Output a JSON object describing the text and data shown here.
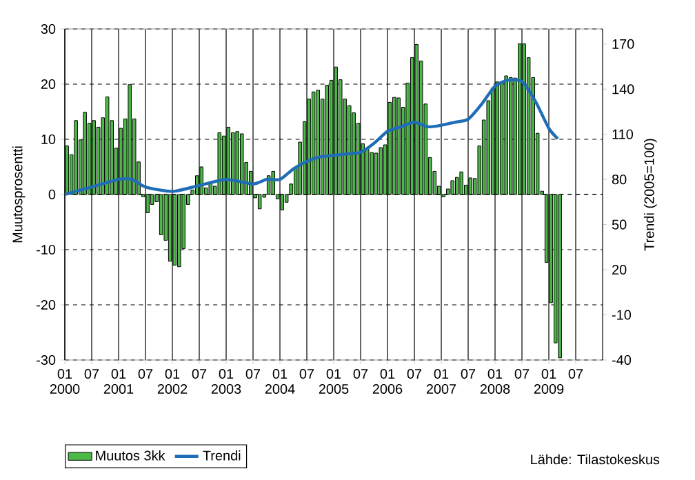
{
  "chart_data": {
    "type": "bar",
    "ylabel": "Muutosprosentti",
    "y2label": "Trendi (2005=100)",
    "annotations": [
      "Lähde: Tilastokeskus"
    ],
    "x": [
      "2000-01-16",
      "2000-02-15",
      "2000-03-16",
      "2000-04-16",
      "2000-05-16",
      "2000-06-16",
      "2000-07-16",
      "2000-08-16",
      "2000-09-16",
      "2000-10-16",
      "2000-11-16",
      "2000-12-16",
      "2001-01-16",
      "2001-02-15",
      "2001-03-16",
      "2001-04-16",
      "2001-05-16",
      "2001-06-16",
      "2001-07-16",
      "2001-08-16",
      "2001-09-16",
      "2001-10-16",
      "2001-11-16",
      "2001-12-16",
      "2002-01-16",
      "2002-02-15",
      "2002-03-16",
      "2002-04-16",
      "2002-05-16",
      "2002-06-16",
      "2002-07-16",
      "2002-08-16",
      "2002-09-16",
      "2002-10-16",
      "2002-11-16",
      "2002-12-16",
      "2003-01-16",
      "2003-02-15",
      "2003-03-16",
      "2003-04-16",
      "2003-05-16",
      "2003-06-16",
      "2003-07-16",
      "2003-08-16",
      "2003-09-16",
      "2003-10-16",
      "2003-11-16",
      "2003-12-16",
      "2004-01-16",
      "2004-02-15",
      "2004-03-16",
      "2004-04-16",
      "2004-05-16",
      "2004-06-16",
      "2004-07-16",
      "2004-08-16",
      "2004-09-16",
      "2004-10-16",
      "2004-11-16",
      "2004-12-16",
      "2005-01-16",
      "2005-02-15",
      "2005-03-16",
      "2005-04-16",
      "2005-05-16",
      "2005-06-16",
      "2005-07-16",
      "2005-08-16",
      "2005-09-16",
      "2005-10-16",
      "2005-11-16",
      "2005-12-16",
      "2006-01-16",
      "2006-02-15",
      "2006-03-16",
      "2006-04-16",
      "2006-05-16",
      "2006-06-16",
      "2006-07-16",
      "2006-08-16",
      "2006-09-16",
      "2006-10-16",
      "2006-11-16",
      "2006-12-16",
      "2007-01-16",
      "2007-02-15",
      "2007-03-16",
      "2007-04-16",
      "2007-05-16",
      "2007-06-16",
      "2007-07-16",
      "2007-08-16",
      "2007-09-16",
      "2007-10-16",
      "2007-11-16",
      "2007-12-16",
      "2008-01-16",
      "2008-02-15",
      "2008-03-16",
      "2008-04-16",
      "2008-05-16",
      "2008-06-16",
      "2008-07-16",
      "2008-08-16",
      "2008-09-16",
      "2008-10-16",
      "2008-11-16",
      "2008-12-16",
      "2009-01-16",
      "2009-02-15",
      "2009-03-16"
    ],
    "xlim": [
      "2000-01",
      "2010-01"
    ],
    "xticks": [
      {
        "value": "2000-01",
        "label": "01 2000"
      },
      {
        "value": "2000-07",
        "label": "07"
      },
      {
        "value": "2001-01",
        "label": "01 2001"
      },
      {
        "value": "2001-07",
        "label": "07"
      },
      {
        "value": "2002-01",
        "label": "01 2002"
      },
      {
        "value": "2002-07",
        "label": "07"
      },
      {
        "value": "2003-01",
        "label": "01 2003"
      },
      {
        "value": "2003-07",
        "label": "07"
      },
      {
        "value": "2004-01",
        "label": "01 2004"
      },
      {
        "value": "2004-07",
        "label": "07"
      },
      {
        "value": "2005-01",
        "label": "01 2005"
      },
      {
        "value": "2005-07",
        "label": "07"
      },
      {
        "value": "2006-01",
        "label": "01 2006"
      },
      {
        "value": "2006-07",
        "label": "07"
      },
      {
        "value": "2007-01",
        "label": "01 2007"
      },
      {
        "value": "2007-07",
        "label": "07"
      },
      {
        "value": "2008-01",
        "label": "01 2008"
      },
      {
        "value": "2008-07",
        "label": "07"
      },
      {
        "value": "2009-01",
        "label": "01 2009"
      },
      {
        "value": "2009-07",
        "label": "07"
      }
    ],
    "ylim": [
      -30,
      30
    ],
    "yticks": [
      -30,
      -20,
      -10,
      0,
      10,
      20,
      30
    ],
    "y2lim": [
      -40,
      180
    ],
    "y2ticks": [
      -40,
      -10,
      20,
      50,
      80,
      110,
      140,
      170
    ],
    "grid": true,
    "legend": "bottom left",
    "series": [
      {
        "name": "Muutos 3kk",
        "color": "#4cb848",
        "values": [
          8.8,
          7.2,
          13.4,
          9.9,
          14.9,
          12.9,
          13.4,
          12.2,
          13.9,
          17.7,
          13.4,
          8.4,
          12.0,
          13.7,
          19.9,
          13.7,
          5.9,
          -0.4,
          -3.3,
          -1.8,
          -1.3,
          -7.3,
          -8.3,
          -12.1,
          -12.8,
          -13.1,
          -9.8,
          -1.8,
          0.8,
          3.4,
          5.0,
          1.2,
          2.0,
          1.5,
          11.2,
          10.6,
          12.2,
          11.2,
          11.4,
          11.0,
          5.8,
          4.2,
          -0.6,
          -2.6,
          -0.5,
          3.4,
          4.2,
          -0.8,
          -2.8,
          -1.4,
          1.9,
          4.8,
          9.5,
          13.2,
          17.3,
          18.6,
          18.9,
          17.3,
          19.8,
          20.7,
          23.1,
          20.8,
          17.3,
          16.1,
          14.8,
          12.9,
          9.2,
          8.4,
          7.6,
          7.5,
          8.5,
          9.0,
          16.7,
          17.6,
          17.5,
          15.8,
          20.2,
          24.8,
          27.2,
          24.2,
          16.4,
          6.7,
          4.2,
          1.5,
          -0.4,
          1.0,
          2.5,
          3.1,
          4.1,
          1.7,
          3.0,
          2.9,
          8.8,
          13.5,
          17.0,
          19.3,
          20.4,
          20.2,
          21.5,
          21.2,
          21.1,
          27.3,
          27.3,
          24.8,
          21.2,
          11.1,
          0.6,
          -12.3,
          -19.6,
          -26.9,
          -29.6
        ]
      },
      {
        "name": "Trendi",
        "type": "line",
        "axis": "y2",
        "color": "#1f6db6",
        "x": [
          "2000-01",
          "2000-07",
          "2001-01",
          "2001-04",
          "2001-07",
          "2002-01",
          "2002-07",
          "2003-01",
          "2003-07",
          "2003-10",
          "2004-01",
          "2004-04",
          "2004-07",
          "2004-10",
          "2005-01",
          "2005-04",
          "2005-07",
          "2005-10",
          "2006-01",
          "2006-04",
          "2006-07",
          "2006-10",
          "2007-01",
          "2007-04",
          "2007-07",
          "2007-10",
          "2008-01",
          "2008-04",
          "2008-07",
          "2008-10",
          "2009-01",
          "2009-03"
        ],
        "values": [
          70,
          75,
          80,
          80,
          75,
          72,
          76,
          80,
          77,
          80,
          80,
          87,
          92,
          95,
          96,
          97,
          98,
          104,
          112,
          115,
          118,
          115,
          116,
          118,
          120,
          130,
          142,
          146,
          145,
          132,
          114,
          107
        ]
      }
    ]
  }
}
